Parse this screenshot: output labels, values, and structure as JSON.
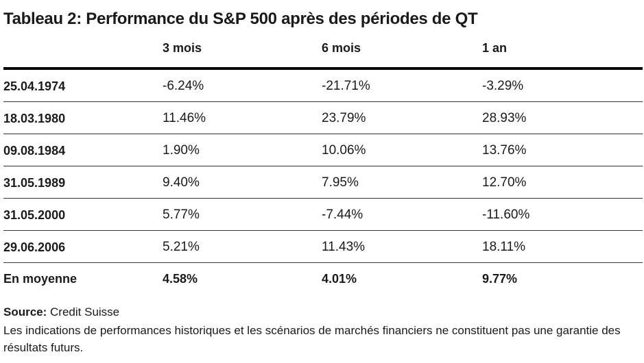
{
  "chart_data": {
    "type": "table",
    "title": "Tableau 2: Performance du S&P 500 après des périodes de QT",
    "columns": [
      "3 mois",
      "6 mois",
      "1 an"
    ],
    "rows": [
      {
        "date": "25.04.1974",
        "values": [
          "-6.24%",
          "-21.71%",
          "-3.29%"
        ]
      },
      {
        "date": "18.03.1980",
        "values": [
          "11.46%",
          "23.79%",
          "28.93%"
        ]
      },
      {
        "date": "09.08.1984",
        "values": [
          "1.90%",
          "10.06%",
          "13.76%"
        ]
      },
      {
        "date": "31.05.1989",
        "values": [
          "9.40%",
          "7.95%",
          "12.70%"
        ]
      },
      {
        "date": "31.05.2000",
        "values": [
          "5.77%",
          "-7.44%",
          "-11.60%"
        ]
      },
      {
        "date": "29.06.2006",
        "values": [
          "5.21%",
          "11.43%",
          "18.11%"
        ]
      }
    ],
    "average": {
      "label": "En moyenne",
      "values": [
        "4.58%",
        "4.01%",
        "9.77%"
      ]
    }
  },
  "footer": {
    "source_label": "Source:",
    "source_value": "Credit Suisse",
    "note": "Les indications de performances historiques et les scénarios de marchés financiers ne constituent pas une garantie des résultats futurs."
  }
}
